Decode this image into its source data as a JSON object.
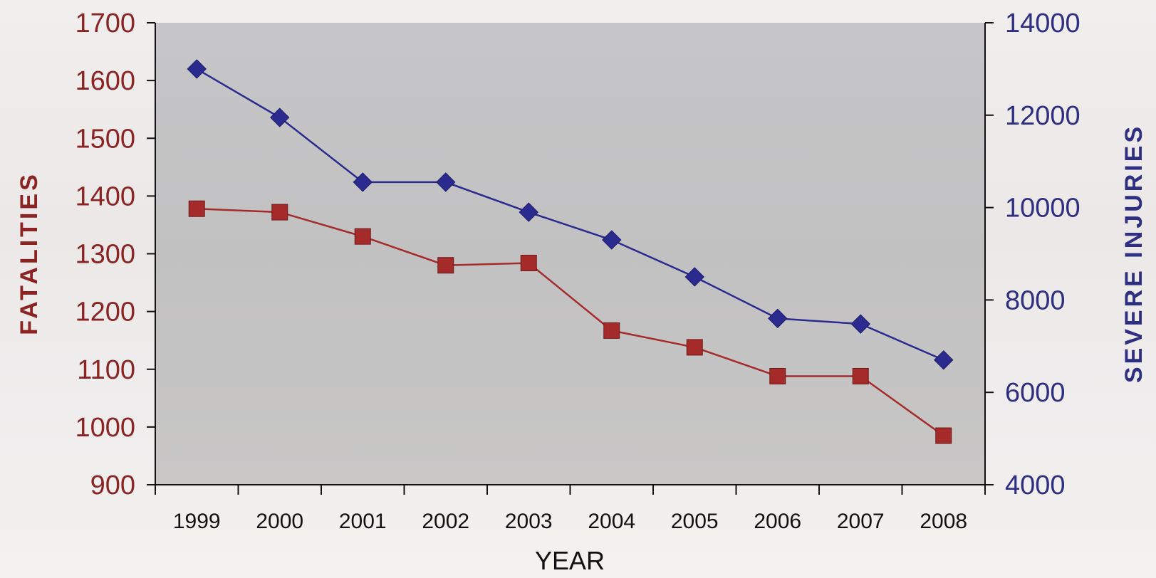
{
  "chart_data": {
    "type": "line",
    "categories": [
      "1999",
      "2000",
      "2001",
      "2002",
      "2003",
      "2004",
      "2005",
      "2006",
      "2007",
      "2008"
    ],
    "xlabel": "YEAR",
    "ylabel_left": "FATALITIES",
    "ylabel_right": "SEVERE INJURIES",
    "ylim_left": [
      900,
      1700
    ],
    "ylim_right": [
      4000,
      14000
    ],
    "yticks_left": [
      "900",
      "1000",
      "1100",
      "1200",
      "1300",
      "1400",
      "1500",
      "1600",
      "1700"
    ],
    "yticks_right": [
      "4000",
      "6000",
      "8000",
      "10000",
      "12000",
      "14000"
    ],
    "grid": false,
    "series": [
      {
        "axis": "left",
        "color": "#a52a2a",
        "marker": "square",
        "values": [
          1378,
          1372,
          1330,
          1280,
          1284,
          1167,
          1138,
          1088,
          1088,
          985
        ]
      },
      {
        "axis": "right",
        "color": "#2b2b8f",
        "marker": "diamond",
        "values": [
          13000,
          11950,
          10550,
          10550,
          9900,
          9300,
          8500,
          7600,
          7480,
          6700
        ]
      }
    ]
  },
  "colors": {
    "fatalities": "#a52a2a",
    "severe_injuries": "#2b2b8f",
    "plot_background": "#c4c4c6"
  }
}
